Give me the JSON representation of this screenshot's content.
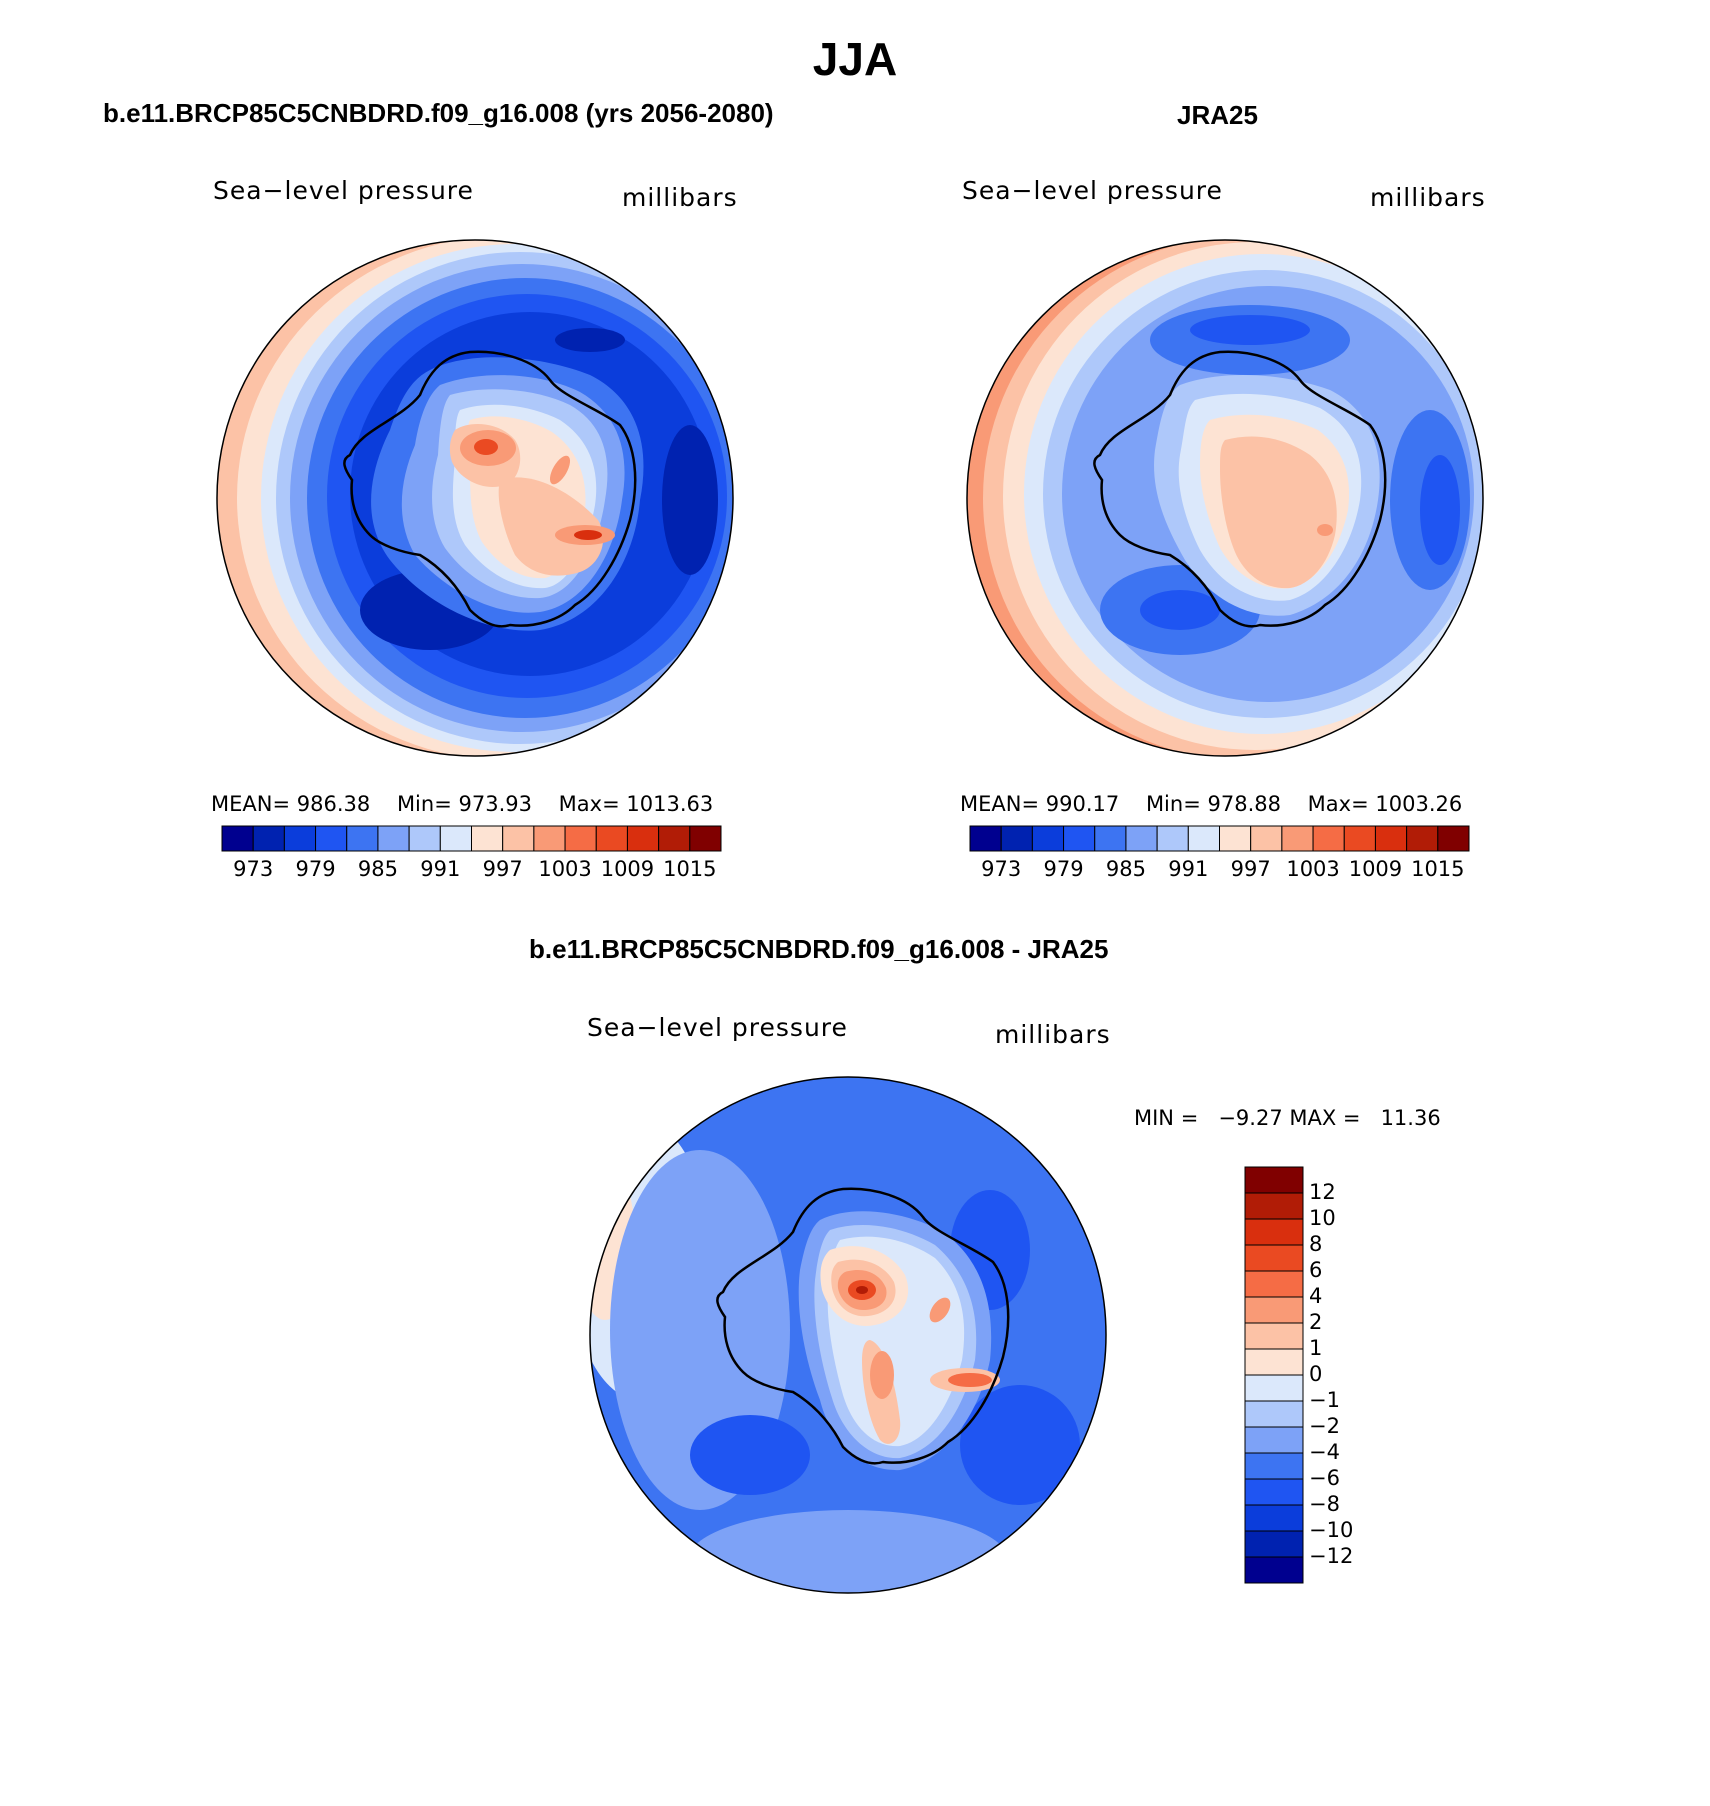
{
  "page_title": "JJA",
  "panels": [
    {
      "title": "b.e11.BRCP85C5CNBDRD.f09_g16.008 (yrs 2056-2080)",
      "variable_label": "Sea−level pressure",
      "units_label": "millibars",
      "stats": {
        "mean_label": "MEAN=",
        "mean": "986.38",
        "min_label": "Min=",
        "min": "973.93",
        "max_label": "Max=",
        "max": "1013.63"
      },
      "colorbar_ticks": [
        "973",
        "979",
        "985",
        "991",
        "997",
        "1003",
        "1009",
        "1015"
      ]
    },
    {
      "title": "JRA25",
      "variable_label": "Sea−level pressure",
      "units_label": "millibars",
      "stats": {
        "mean_label": "MEAN=",
        "mean": "990.17",
        "min_label": "Min=",
        "min": "978.88",
        "max_label": "Max=",
        "max": "1003.26"
      },
      "colorbar_ticks": [
        "973",
        "979",
        "985",
        "991",
        "997",
        "1003",
        "1009",
        "1015"
      ]
    },
    {
      "title": "b.e11.BRCP85C5CNBDRD.f09_g16.008 - JRA25",
      "variable_label": "Sea−level pressure",
      "units_label": "millibars",
      "stats": {
        "min_label": "MIN =",
        "min": "−9.27",
        "max_label": "MAX =",
        "max": "11.36"
      },
      "colorbar_ticks": [
        "12",
        "10",
        "8",
        "6",
        "4",
        "2",
        "1",
        "0",
        "−1",
        "−2",
        "−4",
        "−6",
        "−8",
        "−10",
        "−12"
      ]
    }
  ],
  "colors": {
    "palette": [
      "#00008f",
      "#0022b0",
      "#0b3ddb",
      "#1f55f2",
      "#3d74f2",
      "#7da2f7",
      "#aec8fa",
      "#dbe8fb",
      "#fde3d3",
      "#fcc2a6",
      "#f99a76",
      "#f56c45",
      "#ea4a22",
      "#d92f0e",
      "#b11c06",
      "#800000"
    ],
    "coastline": "#000000"
  }
}
